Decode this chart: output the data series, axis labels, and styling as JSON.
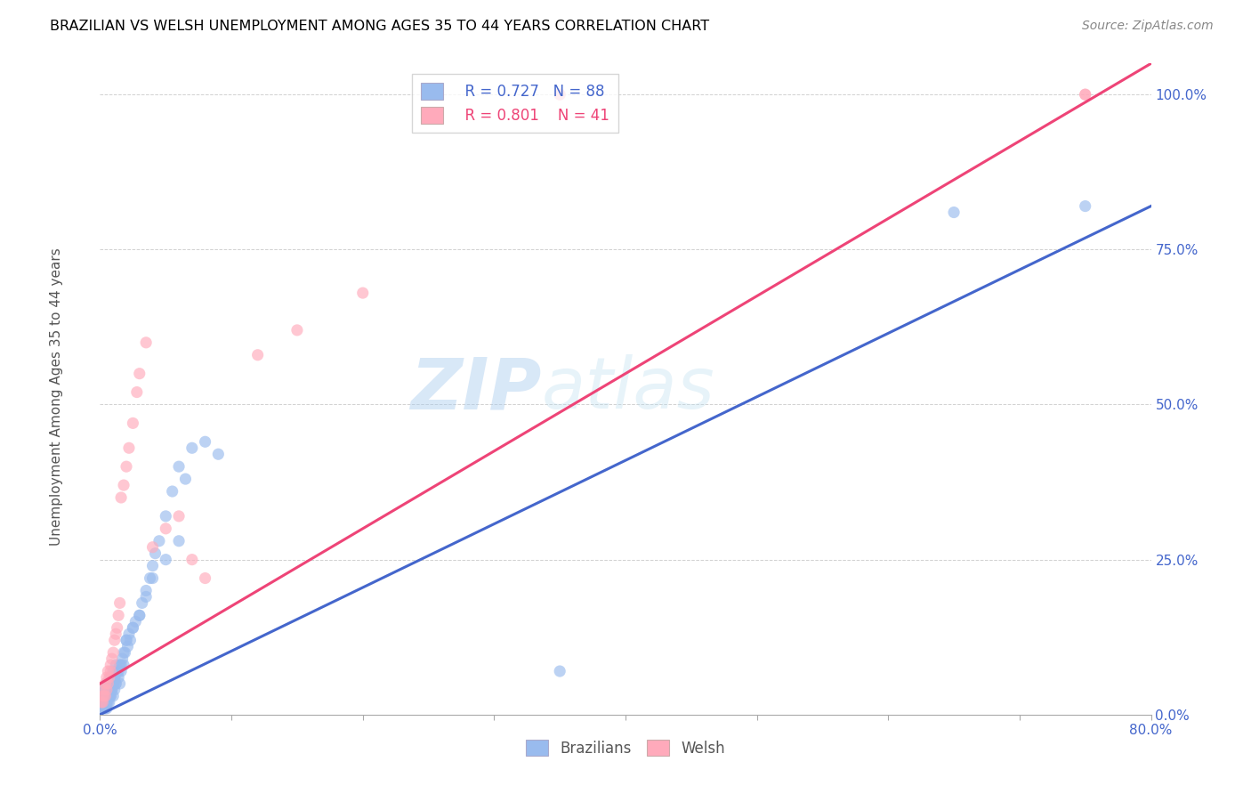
{
  "title": "BRAZILIAN VS WELSH UNEMPLOYMENT AMONG AGES 35 TO 44 YEARS CORRELATION CHART",
  "source": "Source: ZipAtlas.com",
  "xlim": [
    0,
    0.8
  ],
  "ylim": [
    0,
    1.05
  ],
  "xlabel_ticks": [
    "0.0%",
    "",
    "",
    "",
    "",
    "",
    "",
    "",
    "80.0%"
  ],
  "xlabel_vals": [
    0.0,
    0.1,
    0.2,
    0.3,
    0.4,
    0.5,
    0.6,
    0.7,
    0.8
  ],
  "ylabel_ticks": [
    "100.0%",
    "75.0%",
    "50.0%",
    "25.0%",
    "0.0%"
  ],
  "ylabel_vals": [
    1.0,
    0.75,
    0.5,
    0.25,
    0.0
  ],
  "brazilian_color": "#99BBEE",
  "welsh_color": "#FFAABB",
  "trendline_brazilian_color": "#4466CC",
  "trendline_welsh_color": "#EE4477",
  "legend_r_brazilian": "R = 0.727",
  "legend_n_brazilian": "N = 88",
  "legend_r_welsh": "R = 0.801",
  "legend_n_welsh": "N = 41",
  "watermark_zip": "ZIP",
  "watermark_atlas": "atlas",
  "watermark_color": "#AACCEE",
  "scatter_alpha": 0.65,
  "scatter_size": 90,
  "brazilian_x": [
    0.001,
    0.001,
    0.002,
    0.002,
    0.002,
    0.003,
    0.003,
    0.003,
    0.003,
    0.004,
    0.004,
    0.004,
    0.004,
    0.005,
    0.005,
    0.005,
    0.005,
    0.005,
    0.006,
    0.006,
    0.006,
    0.007,
    0.007,
    0.007,
    0.008,
    0.008,
    0.008,
    0.009,
    0.009,
    0.01,
    0.01,
    0.01,
    0.011,
    0.011,
    0.012,
    0.012,
    0.013,
    0.014,
    0.015,
    0.015,
    0.016,
    0.017,
    0.018,
    0.019,
    0.02,
    0.021,
    0.022,
    0.023,
    0.025,
    0.027,
    0.03,
    0.032,
    0.035,
    0.038,
    0.04,
    0.042,
    0.045,
    0.05,
    0.055,
    0.06,
    0.002,
    0.003,
    0.004,
    0.005,
    0.006,
    0.007,
    0.008,
    0.009,
    0.01,
    0.011,
    0.012,
    0.014,
    0.016,
    0.018,
    0.02,
    0.025,
    0.03,
    0.035,
    0.04,
    0.05,
    0.06,
    0.065,
    0.07,
    0.08,
    0.09,
    0.35,
    0.65,
    0.75
  ],
  "brazilian_y": [
    0.01,
    0.02,
    0.01,
    0.02,
    0.03,
    0.01,
    0.02,
    0.03,
    0.04,
    0.01,
    0.02,
    0.03,
    0.04,
    0.01,
    0.02,
    0.03,
    0.04,
    0.05,
    0.02,
    0.03,
    0.04,
    0.02,
    0.03,
    0.05,
    0.03,
    0.04,
    0.06,
    0.04,
    0.05,
    0.03,
    0.05,
    0.07,
    0.04,
    0.06,
    0.05,
    0.08,
    0.07,
    0.06,
    0.05,
    0.08,
    0.07,
    0.09,
    0.08,
    0.1,
    0.12,
    0.11,
    0.13,
    0.12,
    0.14,
    0.15,
    0.16,
    0.18,
    0.2,
    0.22,
    0.24,
    0.26,
    0.28,
    0.32,
    0.36,
    0.4,
    0.02,
    0.03,
    0.04,
    0.02,
    0.03,
    0.04,
    0.03,
    0.04,
    0.05,
    0.06,
    0.05,
    0.07,
    0.08,
    0.1,
    0.12,
    0.14,
    0.16,
    0.19,
    0.22,
    0.25,
    0.28,
    0.38,
    0.43,
    0.44,
    0.42,
    0.07,
    0.81,
    0.82
  ],
  "welsh_x": [
    0.001,
    0.002,
    0.002,
    0.003,
    0.003,
    0.004,
    0.004,
    0.005,
    0.005,
    0.006,
    0.006,
    0.007,
    0.008,
    0.008,
    0.009,
    0.01,
    0.011,
    0.012,
    0.013,
    0.014,
    0.015,
    0.016,
    0.018,
    0.02,
    0.022,
    0.025,
    0.028,
    0.03,
    0.035,
    0.04,
    0.05,
    0.06,
    0.07,
    0.08,
    0.35,
    0.35,
    0.75,
    0.75,
    0.12,
    0.15,
    0.2
  ],
  "welsh_y": [
    0.02,
    0.02,
    0.03,
    0.03,
    0.04,
    0.03,
    0.05,
    0.04,
    0.06,
    0.05,
    0.07,
    0.06,
    0.07,
    0.08,
    0.09,
    0.1,
    0.12,
    0.13,
    0.14,
    0.16,
    0.18,
    0.35,
    0.37,
    0.4,
    0.43,
    0.47,
    0.52,
    0.55,
    0.6,
    0.27,
    0.3,
    0.32,
    0.25,
    0.22,
    1.0,
    1.0,
    1.0,
    1.0,
    0.58,
    0.62,
    0.68
  ],
  "trendline_b_x0": 0.0,
  "trendline_b_x1": 0.8,
  "trendline_b_y0": 0.0,
  "trendline_b_y1": 0.82,
  "trendline_w_x0": 0.0,
  "trendline_w_x1": 0.8,
  "trendline_w_y0": 0.05,
  "trendline_w_y1": 1.05
}
